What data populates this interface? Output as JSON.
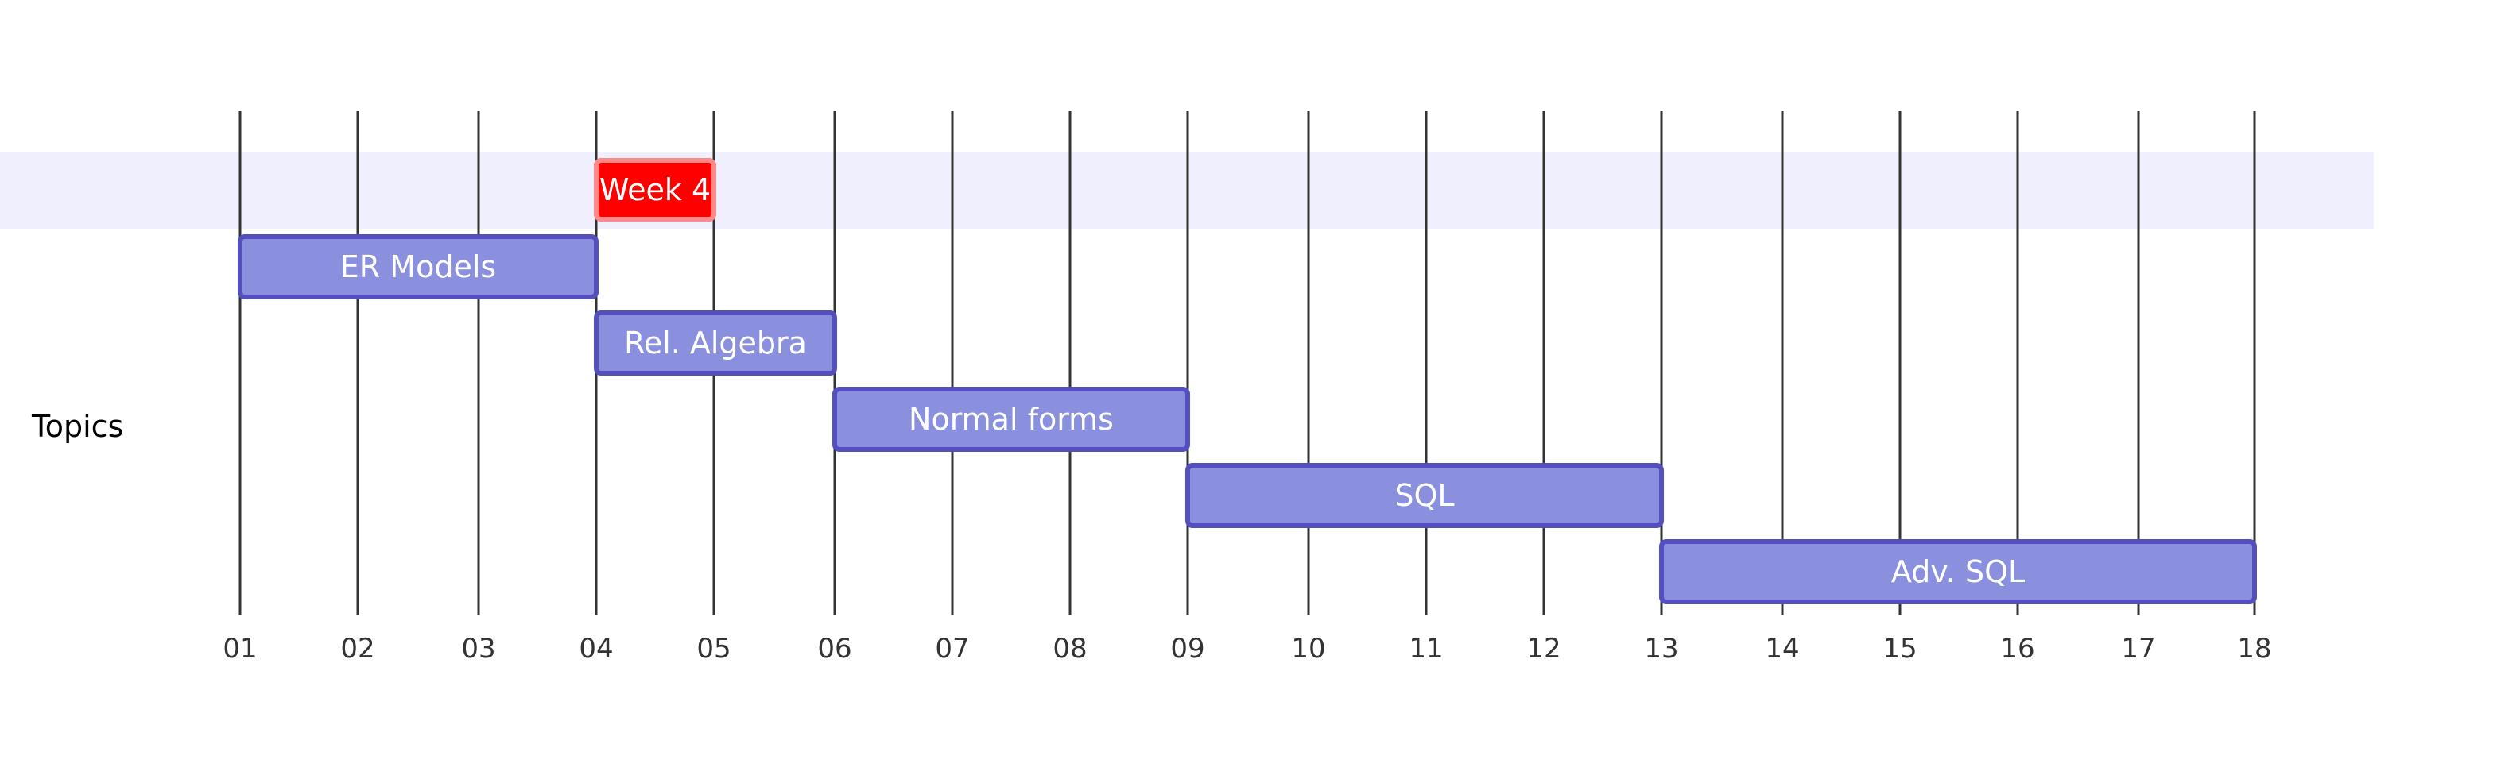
{
  "chart_data": {
    "type": "gantt",
    "title": "",
    "x_axis": {
      "ticks": [
        "01",
        "02",
        "03",
        "04",
        "05",
        "06",
        "07",
        "08",
        "09",
        "10",
        "11",
        "12",
        "13",
        "14",
        "15",
        "16",
        "17",
        "18"
      ],
      "range": [
        1,
        19
      ]
    },
    "grid": true,
    "sections": [
      {
        "label": "Topics"
      }
    ],
    "milestones": [
      {
        "name": "Week 4",
        "start": 4,
        "end": 5,
        "color": "#ff0000"
      }
    ],
    "tasks": [
      {
        "name": "ER Models",
        "start": 1,
        "end": 4
      },
      {
        "name": "Rel. Algebra",
        "start": 4,
        "end": 6
      },
      {
        "name": "Normal forms",
        "start": 6,
        "end": 9
      },
      {
        "name": "SQL",
        "start": 9,
        "end": 13
      },
      {
        "name": "Adv. SQL",
        "start": 13,
        "end": 18
      }
    ],
    "colors": {
      "task_fill": "#8a90dd",
      "task_border": "#534fbc",
      "marker_fill": "#ff0000",
      "marker_border": "#ff8888",
      "band": "#efeffd",
      "grid": "#333333"
    }
  }
}
